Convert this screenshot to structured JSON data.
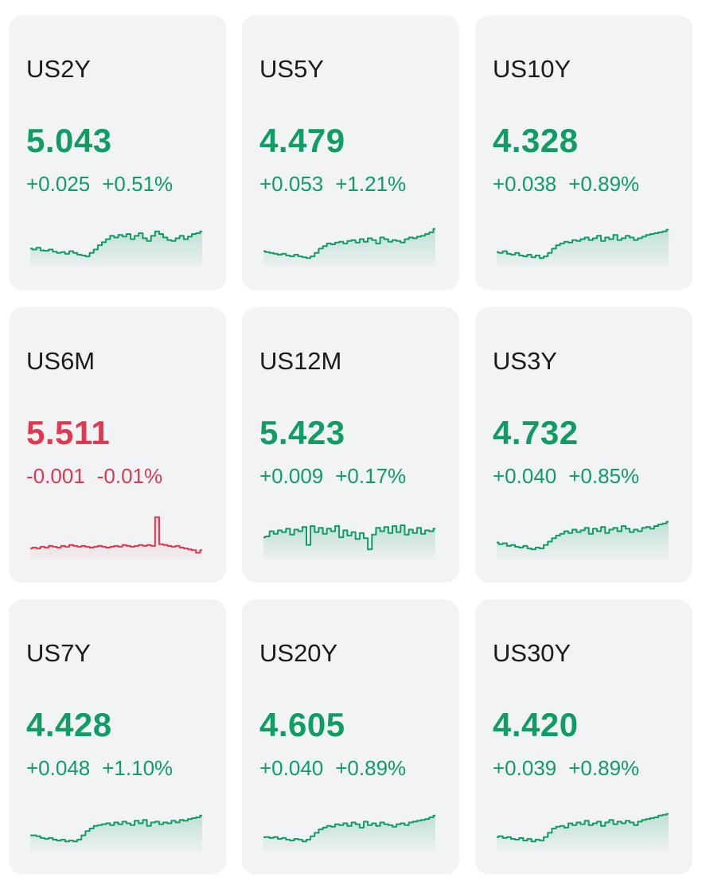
{
  "colors": {
    "up": "#0f9d63",
    "down": "#e0384f",
    "card_bg": "#f2f3f5"
  },
  "quotes": [
    {
      "symbol": "US2Y",
      "price": "5.043",
      "change": "+0.025",
      "percent": "+0.51%",
      "direction": "up",
      "spark": [
        0.4,
        0.38,
        0.42,
        0.36,
        0.35,
        0.38,
        0.33,
        0.3,
        0.32,
        0.28,
        0.34,
        0.3,
        0.26,
        0.24,
        0.22,
        0.3,
        0.38,
        0.48,
        0.55,
        0.62,
        0.7,
        0.66,
        0.72,
        0.68,
        0.74,
        0.62,
        0.7,
        0.76,
        0.64,
        0.58,
        0.7,
        0.8,
        0.74,
        0.66,
        0.6,
        0.58,
        0.64,
        0.7,
        0.62,
        0.68,
        0.74,
        0.76,
        0.8
      ]
    },
    {
      "symbol": "US5Y",
      "price": "4.479",
      "change": "+0.053",
      "percent": "+1.21%",
      "direction": "up",
      "spark": [
        0.34,
        0.32,
        0.3,
        0.28,
        0.26,
        0.28,
        0.24,
        0.22,
        0.26,
        0.22,
        0.2,
        0.18,
        0.22,
        0.3,
        0.4,
        0.46,
        0.52,
        0.5,
        0.54,
        0.56,
        0.52,
        0.58,
        0.6,
        0.54,
        0.62,
        0.56,
        0.64,
        0.6,
        0.52,
        0.66,
        0.62,
        0.56,
        0.6,
        0.58,
        0.54,
        0.62,
        0.66,
        0.64,
        0.68,
        0.7,
        0.74,
        0.78,
        0.86
      ]
    },
    {
      "symbol": "US10Y",
      "price": "4.328",
      "change": "+0.038",
      "percent": "+0.89%",
      "direction": "up",
      "spark": [
        0.32,
        0.3,
        0.34,
        0.28,
        0.26,
        0.3,
        0.24,
        0.22,
        0.26,
        0.2,
        0.24,
        0.18,
        0.22,
        0.3,
        0.4,
        0.48,
        0.52,
        0.56,
        0.54,
        0.6,
        0.58,
        0.62,
        0.66,
        0.6,
        0.64,
        0.7,
        0.58,
        0.66,
        0.62,
        0.72,
        0.6,
        0.64,
        0.7,
        0.66,
        0.6,
        0.64,
        0.68,
        0.72,
        0.74,
        0.76,
        0.78,
        0.8,
        0.84
      ]
    },
    {
      "symbol": "US6M",
      "price": "5.511",
      "change": "-0.001",
      "percent": "-0.01%",
      "direction": "down",
      "spark": [
        0.22,
        0.24,
        0.22,
        0.26,
        0.24,
        0.28,
        0.26,
        0.24,
        0.28,
        0.26,
        0.3,
        0.28,
        0.26,
        0.28,
        0.26,
        0.24,
        0.26,
        0.28,
        0.26,
        0.24,
        0.26,
        0.28,
        0.26,
        0.3,
        0.28,
        0.26,
        0.28,
        0.3,
        0.28,
        0.3,
        0.28,
        0.95,
        0.32,
        0.3,
        0.28,
        0.26,
        0.28,
        0.24,
        0.22,
        0.2,
        0.18,
        0.12,
        0.18
      ]
    },
    {
      "symbol": "US12M",
      "price": "5.423",
      "change": "+0.009",
      "percent": "+0.17%",
      "direction": "up",
      "spark": [
        0.48,
        0.5,
        0.62,
        0.56,
        0.64,
        0.6,
        0.68,
        0.54,
        0.66,
        0.62,
        0.72,
        0.3,
        0.74,
        0.6,
        0.7,
        0.56,
        0.68,
        0.62,
        0.74,
        0.48,
        0.64,
        0.52,
        0.6,
        0.44,
        0.58,
        0.46,
        0.2,
        0.54,
        0.7,
        0.62,
        0.72,
        0.58,
        0.74,
        0.6,
        0.76,
        0.54,
        0.66,
        0.58,
        0.7,
        0.56,
        0.64,
        0.62,
        0.68
      ]
    },
    {
      "symbol": "US3Y",
      "price": "4.732",
      "change": "+0.040",
      "percent": "+0.85%",
      "direction": "up",
      "spark": [
        0.36,
        0.32,
        0.34,
        0.28,
        0.3,
        0.26,
        0.24,
        0.28,
        0.22,
        0.2,
        0.24,
        0.22,
        0.3,
        0.38,
        0.46,
        0.52,
        0.56,
        0.62,
        0.58,
        0.66,
        0.6,
        0.64,
        0.7,
        0.56,
        0.68,
        0.62,
        0.72,
        0.58,
        0.66,
        0.7,
        0.62,
        0.74,
        0.68,
        0.6,
        0.66,
        0.62,
        0.7,
        0.72,
        0.68,
        0.74,
        0.78,
        0.8,
        0.84
      ]
    },
    {
      "symbol": "US7Y",
      "price": "4.428",
      "change": "+0.048",
      "percent": "+1.10%",
      "direction": "up",
      "spark": [
        0.34,
        0.34,
        0.32,
        0.28,
        0.26,
        0.28,
        0.24,
        0.22,
        0.24,
        0.2,
        0.22,
        0.2,
        0.24,
        0.34,
        0.44,
        0.5,
        0.56,
        0.58,
        0.6,
        0.62,
        0.58,
        0.64,
        0.6,
        0.66,
        0.62,
        0.58,
        0.68,
        0.62,
        0.7,
        0.56,
        0.64,
        0.66,
        0.6,
        0.64,
        0.62,
        0.68,
        0.64,
        0.7,
        0.68,
        0.72,
        0.74,
        0.76,
        0.8
      ]
    },
    {
      "symbol": "US20Y",
      "price": "4.605",
      "change": "+0.040",
      "percent": "+0.89%",
      "direction": "up",
      "spark": [
        0.3,
        0.3,
        0.28,
        0.3,
        0.26,
        0.28,
        0.24,
        0.22,
        0.26,
        0.24,
        0.2,
        0.24,
        0.32,
        0.4,
        0.48,
        0.52,
        0.56,
        0.54,
        0.6,
        0.58,
        0.62,
        0.56,
        0.64,
        0.6,
        0.52,
        0.66,
        0.58,
        0.62,
        0.56,
        0.64,
        0.6,
        0.58,
        0.54,
        0.6,
        0.62,
        0.58,
        0.64,
        0.66,
        0.68,
        0.7,
        0.72,
        0.76,
        0.8
      ]
    },
    {
      "symbol": "US30Y",
      "price": "4.420",
      "change": "+0.039",
      "percent": "+0.89%",
      "direction": "up",
      "spark": [
        0.3,
        0.32,
        0.28,
        0.3,
        0.26,
        0.24,
        0.28,
        0.22,
        0.26,
        0.2,
        0.24,
        0.22,
        0.3,
        0.4,
        0.5,
        0.54,
        0.56,
        0.52,
        0.62,
        0.58,
        0.64,
        0.6,
        0.68,
        0.58,
        0.62,
        0.66,
        0.56,
        0.64,
        0.7,
        0.6,
        0.66,
        0.62,
        0.68,
        0.64,
        0.58,
        0.66,
        0.7,
        0.72,
        0.74,
        0.76,
        0.8,
        0.82,
        0.84
      ]
    }
  ]
}
